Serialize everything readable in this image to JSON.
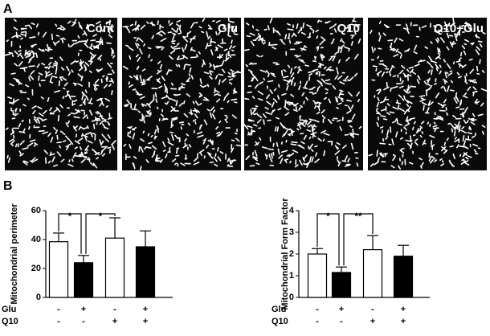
{
  "panel_labels": [
    "A",
    "B"
  ],
  "images": [
    {
      "label": "Cont"
    },
    {
      "label": "Glu"
    },
    {
      "label": "Q10"
    },
    {
      "label": "Q10+Glu"
    }
  ],
  "chart_data": [
    {
      "type": "bar",
      "y_label": "Mitochondrial perimeter",
      "values": [
        38.5,
        24,
        41,
        35
      ],
      "errors": [
        6,
        5,
        14,
        11
      ],
      "colors": [
        "#ffffff",
        "#000000",
        "#ffffff",
        "#000000"
      ],
      "ylim": [
        0,
        60
      ],
      "yticks": [
        0,
        20,
        40,
        60
      ],
      "treatment_rows": [
        {
          "name": "Glu",
          "marks": [
            "-",
            "+",
            "-",
            "+"
          ]
        },
        {
          "name": "Q10",
          "marks": [
            "-",
            "-",
            "+",
            "+"
          ]
        }
      ],
      "significance": [
        {
          "label": "*",
          "pair": [
            0,
            1
          ]
        },
        {
          "label": "*",
          "pair": [
            1,
            2
          ]
        }
      ]
    },
    {
      "type": "bar",
      "y_label": "Mitochondrial Form Factor",
      "values": [
        2.0,
        1.15,
        2.2,
        1.9
      ],
      "errors": [
        0.25,
        0.25,
        0.65,
        0.5
      ],
      "colors": [
        "#ffffff",
        "#000000",
        "#ffffff",
        "#000000"
      ],
      "ylim": [
        0,
        4
      ],
      "yticks": [
        0,
        1,
        2,
        3,
        4
      ],
      "treatment_rows": [
        {
          "name": "Glu",
          "marks": [
            "-",
            "+",
            "-",
            "+"
          ]
        },
        {
          "name": "Q10",
          "marks": [
            "-",
            "-",
            "+",
            "+"
          ]
        }
      ],
      "significance": [
        {
          "label": "*",
          "pair": [
            0,
            1
          ]
        },
        {
          "label": "**",
          "pair": [
            1,
            2
          ]
        }
      ]
    }
  ]
}
